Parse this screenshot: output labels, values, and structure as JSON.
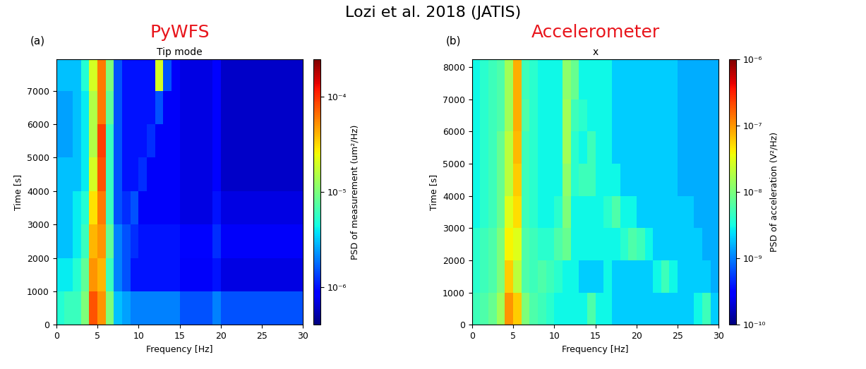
{
  "title": "Lozi et al. 2018 (JATIS)",
  "chart_data": [
    {
      "type": "heatmap",
      "label": "(a)",
      "annotation": {
        "text": "PyWFS",
        "color": "#e8141b"
      },
      "title": "Tip mode",
      "xlabel": "Frequency [Hz]",
      "ylabel": "Time [s]",
      "xlim": [
        0,
        30
      ],
      "xticks": [
        0,
        5,
        10,
        15,
        20,
        25,
        30
      ],
      "ylim": [
        0,
        7950
      ],
      "yticks": [
        0,
        1000,
        2000,
        3000,
        4000,
        5000,
        6000,
        7000
      ],
      "x_edges": [
        0,
        1,
        2,
        3,
        4,
        5,
        6,
        7,
        8,
        9,
        10,
        11,
        12,
        13,
        14,
        15,
        16,
        17,
        18,
        19,
        20,
        21,
        22,
        23,
        24,
        25,
        26,
        27,
        28,
        29,
        30
      ],
      "y_edges": [
        0,
        1000,
        2000,
        3000,
        4000,
        5000,
        6000,
        7000,
        7950
      ],
      "cells": [
        [
          5e-06,
          6e-06,
          6e-06,
          1e-05,
          8e-05,
          5e-05,
          1e-05,
          3e-06,
          2.5e-06,
          2e-06,
          2e-06,
          2e-06,
          2e-06,
          2e-06,
          2e-06,
          1.5e-06,
          1.5e-06,
          1.5e-06,
          1.5e-06,
          2e-06,
          1.5e-06,
          1.5e-06,
          1.5e-06,
          1.5e-06,
          1.5e-06,
          1.5e-06,
          1.5e-06,
          1.5e-06,
          1.5e-06,
          1.5e-06
        ],
        [
          4e-06,
          4e-06,
          5e-06,
          8e-06,
          5e-05,
          4e-05,
          6e-06,
          2e-06,
          1.5e-06,
          1e-06,
          1e-06,
          1e-06,
          1e-06,
          1e-06,
          1e-06,
          8e-07,
          8e-07,
          8e-07,
          8e-07,
          1e-06,
          7e-07,
          7e-07,
          7e-07,
          7e-07,
          7e-07,
          7e-07,
          7e-07,
          7e-07,
          7e-07,
          7e-07
        ],
        [
          3e-06,
          3e-06,
          4e-06,
          6e-06,
          4e-05,
          5e-05,
          8e-06,
          2e-06,
          1.5e-06,
          1.2e-06,
          1e-06,
          1e-06,
          1e-06,
          1e-06,
          1e-06,
          9e-07,
          9e-07,
          9e-07,
          9e-07,
          1.2e-06,
          8e-07,
          8e-07,
          8e-07,
          8e-07,
          8e-07,
          8e-07,
          8e-07,
          8e-07,
          8e-07,
          8e-07
        ],
        [
          3e-06,
          3e-06,
          4e-06,
          5e-06,
          3e-05,
          6e-05,
          6e-06,
          1.5e-06,
          1.2e-06,
          1.5e-06,
          8e-07,
          8e-07,
          8e-07,
          8e-07,
          8e-07,
          7e-07,
          7e-07,
          7e-07,
          7e-07,
          1e-06,
          7e-07,
          7e-07,
          7e-07,
          7e-07,
          7e-07,
          7e-07,
          7e-07,
          7e-07,
          7e-07,
          7e-07
        ],
        [
          3e-06,
          3e-06,
          3e-06,
          4e-06,
          2e-05,
          8e-05,
          6e-06,
          1.5e-06,
          1e-06,
          1e-06,
          1.2e-06,
          8e-07,
          8e-07,
          8e-07,
          8e-07,
          7e-07,
          7e-07,
          7e-07,
          7e-07,
          9e-07,
          6e-07,
          6e-07,
          6e-07,
          6e-07,
          6e-07,
          6e-07,
          6e-07,
          6e-07,
          6e-07,
          6e-07
        ],
        [
          2.5e-06,
          2.5e-06,
          3e-06,
          4e-06,
          1.5e-05,
          9e-05,
          6e-06,
          1.5e-06,
          1e-06,
          1e-06,
          1e-06,
          1.2e-06,
          8e-07,
          8e-07,
          8e-07,
          7e-07,
          7e-07,
          7e-07,
          7e-07,
          9e-07,
          6e-07,
          6e-07,
          6e-07,
          6e-07,
          6e-07,
          6e-07,
          6e-07,
          6e-07,
          6e-07,
          6e-07
        ],
        [
          2.5e-06,
          2.5e-06,
          3e-06,
          4e-06,
          1.5e-05,
          6e-05,
          8e-06,
          1.5e-06,
          1e-06,
          1e-06,
          1e-06,
          1e-06,
          1.5e-06,
          8e-07,
          8e-07,
          7e-07,
          7e-07,
          7e-07,
          7e-07,
          9e-07,
          6e-07,
          6e-07,
          6e-07,
          6e-07,
          6e-07,
          6e-07,
          6e-07,
          6e-07,
          6e-07,
          6e-07
        ],
        [
          3e-06,
          3e-06,
          3e-06,
          5e-06,
          2e-05,
          6e-05,
          1e-05,
          1.5e-06,
          1e-06,
          1e-06,
          1e-06,
          1e-06,
          2e-05,
          1.5e-06,
          8e-07,
          7e-07,
          7e-07,
          7e-07,
          7e-07,
          9e-07,
          6e-07,
          6e-07,
          6e-07,
          6e-07,
          6e-07,
          6e-07,
          6e-07,
          6e-07,
          6e-07,
          6e-07
        ]
      ],
      "colorbar": {
        "label": "PSD of measurement (um²/Hz)",
        "lim": [
          4e-07,
          0.00025
        ],
        "ticks": [
          {
            "value": 1e-06,
            "label": "10⁻⁶"
          },
          {
            "value": 1e-05,
            "label": "10⁻⁵"
          },
          {
            "value": 0.0001,
            "label": "10⁻⁴"
          }
        ]
      }
    },
    {
      "type": "heatmap",
      "label": "(b)",
      "annotation": {
        "text": "Accelerometer",
        "color": "#e8141b"
      },
      "title": "x",
      "xlabel": "Frequency [Hz]",
      "ylabel": "Time [s]",
      "xlim": [
        0,
        30
      ],
      "xticks": [
        0,
        5,
        10,
        15,
        20,
        25,
        30
      ],
      "ylim": [
        0,
        8250
      ],
      "yticks": [
        0,
        1000,
        2000,
        3000,
        4000,
        5000,
        6000,
        7000,
        8000
      ],
      "x_edges": [
        0,
        1,
        2,
        3,
        4,
        5,
        6,
        7,
        8,
        9,
        10,
        11,
        12,
        13,
        14,
        15,
        16,
        17,
        18,
        19,
        20,
        21,
        22,
        23,
        24,
        25,
        26,
        27,
        28,
        29,
        30
      ],
      "y_edges": [
        0,
        1000,
        2000,
        3000,
        4000,
        5000,
        6000,
        7000,
        8250
      ],
      "cells": [
        [
          5e-09,
          6e-09,
          8e-09,
          1.5e-08,
          1e-07,
          6e-08,
          1e-08,
          6e-09,
          5e-09,
          4e-09,
          3e-09,
          3e-09,
          3e-09,
          3e-09,
          6e-09,
          3e-09,
          3e-09,
          2e-09,
          2e-09,
          2e-09,
          2e-09,
          2e-09,
          2e-09,
          2e-09,
          2e-09,
          2e-09,
          2e-09,
          3e-09,
          5e-09,
          2e-09
        ],
        [
          4e-09,
          5e-09,
          6e-09,
          1e-08,
          6e-08,
          2e-08,
          6e-09,
          5e-09,
          6e-09,
          5e-09,
          4e-09,
          3e-09,
          3e-09,
          2e-09,
          2e-09,
          2e-09,
          3e-09,
          2e-09,
          2e-09,
          2e-09,
          2e-09,
          2e-09,
          3e-09,
          5e-09,
          3e-09,
          2e-09,
          2e-09,
          2e-09,
          2e-09,
          1.5e-09
        ],
        [
          4e-09,
          5e-09,
          6e-09,
          1e-08,
          4e-08,
          3e-08,
          6e-09,
          5e-09,
          4e-09,
          4e-09,
          6e-09,
          8e-09,
          3e-09,
          3e-09,
          3e-09,
          3e-09,
          3e-09,
          3e-09,
          4e-09,
          6e-09,
          5e-09,
          3e-09,
          2e-09,
          2e-09,
          2e-09,
          2e-09,
          2e-09,
          2e-09,
          1.5e-09,
          1.5e-09
        ],
        [
          3e-09,
          4e-09,
          5e-09,
          8e-09,
          3e-08,
          5e-08,
          5e-09,
          4e-09,
          3e-09,
          3e-09,
          4e-09,
          1e-08,
          3e-09,
          3e-09,
          3e-09,
          3e-09,
          4e-09,
          6e-09,
          3e-09,
          3e-09,
          2e-09,
          2e-09,
          2e-09,
          2e-09,
          2e-09,
          2e-09,
          2e-09,
          1.5e-09,
          1.5e-09,
          1.5e-09
        ],
        [
          3e-09,
          4e-09,
          5e-09,
          8e-09,
          2e-08,
          6e-08,
          5e-09,
          4e-09,
          3e-09,
          3e-09,
          3e-09,
          1.2e-08,
          4e-09,
          5e-09,
          5e-09,
          3e-09,
          3e-09,
          3e-09,
          2e-09,
          2e-09,
          2e-09,
          2e-09,
          2e-09,
          2e-09,
          2e-09,
          1.5e-09,
          1.5e-09,
          1.5e-09,
          1.5e-09,
          1.5e-09
        ],
        [
          3e-09,
          4e-09,
          5e-09,
          8e-09,
          2e-08,
          7e-08,
          5e-09,
          4e-09,
          3e-09,
          3e-09,
          3e-09,
          1.5e-08,
          4e-09,
          3e-09,
          5e-09,
          3e-09,
          3e-09,
          2e-09,
          2e-09,
          2e-09,
          2e-09,
          2e-09,
          2e-09,
          2e-09,
          2e-09,
          1.5e-09,
          1.5e-09,
          1.5e-09,
          1.5e-09,
          1.5e-09
        ],
        [
          3e-09,
          4e-09,
          5e-09,
          6e-09,
          1.5e-08,
          8e-08,
          6e-09,
          4e-09,
          3e-09,
          3e-09,
          3e-09,
          1.5e-08,
          5e-09,
          4e-09,
          3e-09,
          3e-09,
          3e-09,
          2e-09,
          2e-09,
          2e-09,
          2e-09,
          2e-09,
          2e-09,
          2e-09,
          2e-09,
          1.5e-09,
          1.5e-09,
          1.5e-09,
          1.5e-09,
          1.5e-09
        ],
        [
          3e-09,
          4e-09,
          5e-09,
          6e-09,
          1.5e-08,
          8e-08,
          5e-09,
          4e-09,
          3e-09,
          3e-09,
          3e-09,
          1.2e-08,
          8e-09,
          3e-09,
          3e-09,
          3e-09,
          3e-09,
          2e-09,
          2e-09,
          2e-09,
          2e-09,
          2e-09,
          2e-09,
          2e-09,
          2e-09,
          1.5e-09,
          1.5e-09,
          1.5e-09,
          1.5e-09,
          1.5e-09
        ]
      ],
      "colorbar": {
        "label": "PSD of acceleration (V²/Hz)",
        "lim": [
          1e-10,
          1e-06
        ],
        "ticks": [
          {
            "value": 1e-10,
            "label": "10⁻¹⁰"
          },
          {
            "value": 1e-09,
            "label": "10⁻⁹"
          },
          {
            "value": 1e-08,
            "label": "10⁻⁸"
          },
          {
            "value": 1e-07,
            "label": "10⁻⁷"
          },
          {
            "value": 1e-06,
            "label": "10⁻⁶"
          }
        ]
      }
    }
  ]
}
